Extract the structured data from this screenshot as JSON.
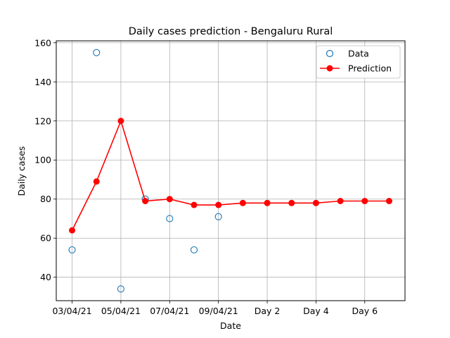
{
  "chart_data": {
    "type": "line",
    "title": "Daily cases prediction - Bengaluru Rural",
    "xlabel": "Date",
    "ylabel": "Daily cases",
    "x_tick_labels": [
      "03/04/21",
      "05/04/21",
      "07/04/21",
      "09/04/21",
      "Day 2",
      "Day 4",
      "Day 6"
    ],
    "x_tick_positions": [
      0,
      2,
      4,
      6,
      8,
      10,
      12
    ],
    "xlim": [
      -0.65,
      13.65
    ],
    "ylim": [
      28,
      161
    ],
    "y_ticks": [
      40,
      60,
      80,
      100,
      120,
      140,
      160
    ],
    "grid": true,
    "legend_position": "top-right",
    "series": [
      {
        "name": "Data",
        "style": "hollow-circle",
        "color": "#1f77b4",
        "x": [
          0,
          1,
          2,
          3,
          4,
          5,
          6
        ],
        "values": [
          54,
          155,
          34,
          80,
          70,
          54,
          71
        ]
      },
      {
        "name": "Prediction",
        "style": "line-filled-circle",
        "color": "#ff0000",
        "x": [
          0,
          1,
          2,
          3,
          4,
          5,
          6,
          7,
          8,
          9,
          10,
          11,
          12,
          13
        ],
        "values": [
          64,
          89,
          120,
          79,
          80,
          77,
          77,
          78,
          78,
          78,
          78,
          79,
          79,
          79
        ]
      }
    ]
  }
}
